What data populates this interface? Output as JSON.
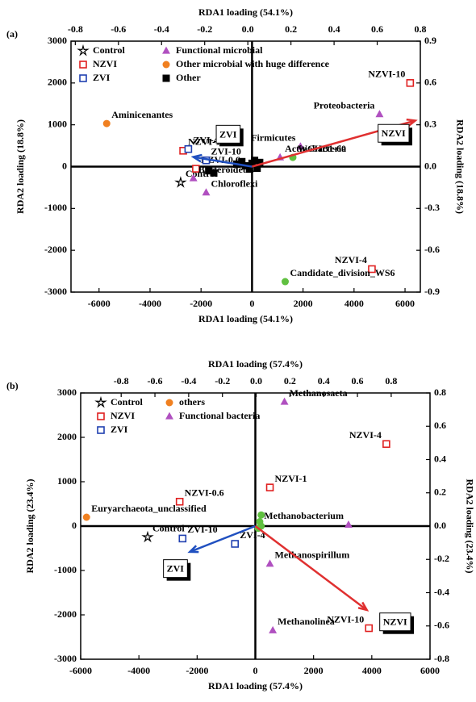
{
  "chart_data": [
    {
      "type": "scatter",
      "panel": "(a)",
      "xlabel": "RDA1 loading  (54.1%)",
      "ylabel": "RDA2 loading   (18.8%)",
      "x2label": "RDA1 loading (54.1%)",
      "y2label": "RDA2 loading   (18.8%)",
      "xlim": [
        -7100,
        6600
      ],
      "ylim": [
        -3000,
        3000
      ],
      "xticks": [
        -6000,
        -4000,
        -2000,
        0,
        2000,
        4000,
        6000
      ],
      "yticks": [
        -3000,
        -2000,
        -1000,
        0,
        1000,
        2000,
        3000
      ],
      "x2lim": [
        -0.82,
        0.8
      ],
      "x2ticks": [
        -0.8,
        -0.6,
        -0.4,
        -0.2,
        {
          "value": 0,
          "label": "0.0"
        },
        0.2,
        0.4,
        0.6,
        0.8
      ],
      "y2lim": [
        -0.9,
        0.9
      ],
      "y2ticks": [
        -0.9,
        -0.6,
        -0.3,
        {
          "value": 0,
          "label": "0.0"
        },
        0.3,
        0.6,
        0.9
      ],
      "series": [
        {
          "name": "Control",
          "color": "#000000",
          "marker": "star",
          "x": [
            -2800
          ],
          "y": [
            -380
          ],
          "labels": [
            "Control"
          ]
        },
        {
          "name": "NZVI",
          "color": "#e02020",
          "marker": "square-open",
          "x": [
            6200,
            4700,
            -2700,
            -2200
          ],
          "y": [
            2000,
            -2450,
            380,
            -50
          ],
          "labels": [
            "NZVI-10",
            "NZVI-4",
            "NZVI-1",
            "NZVI-0.6"
          ]
        },
        {
          "name": "ZVI",
          "color": "#2040b0",
          "marker": "square-open",
          "x": [
            -2500,
            -1800
          ],
          "y": [
            420,
            150
          ],
          "labels": [
            "ZVI-4",
            "ZVI-10"
          ]
        },
        {
          "name": "Functional microbial",
          "color": "#b050c0",
          "marker": "triangle",
          "x": [
            5000,
            1900,
            1100,
            -2300,
            -1800
          ],
          "y": [
            1250,
            480,
            220,
            -280,
            -620
          ],
          "labels": [
            "Proteobacteria",
            "Firmicutes",
            "Actinobacteria",
            "Bacteroidetes",
            "Chloroflexi"
          ]
        },
        {
          "name": "Other microbial with huge difference",
          "color": "#f08020",
          "marker": "circle",
          "x": [
            -5700
          ],
          "y": [
            1030
          ],
          "labels": [
            "Aminicenantes"
          ]
        },
        {
          "name": "Other",
          "color": "#000000",
          "marker": "square",
          "x": [
            -1700,
            -600,
            -400,
            -250,
            -100,
            0,
            100,
            200,
            300,
            -1500
          ],
          "y": [
            -100,
            60,
            120,
            20,
            -60,
            80,
            150,
            -40,
            100,
            -150
          ],
          "labels": [
            null,
            null,
            null,
            null,
            null,
            null,
            null,
            null,
            null,
            null
          ]
        },
        {
          "color": "#60c040",
          "marker": "circle",
          "x": [
            1600,
            1300
          ],
          "y": [
            220,
            -2750
          ],
          "labels": [
            "WCHB1-60",
            "Candidate_division_WS6"
          ]
        }
      ],
      "arrows": [
        {
          "name": "ZVI",
          "color": "#2050c0",
          "x": -2300,
          "y": 230
        },
        {
          "name": "NZVI",
          "color": "#e03030",
          "x": 6400,
          "y": 1100
        }
      ]
    },
    {
      "type": "scatter",
      "panel": "(b)",
      "xlabel": "RDA1 loading (57.4%)",
      "ylabel": "RDA2 loading (23.4%)",
      "x2label": "RDA1 loading (57.4%)",
      "y2label": "RDA2 loading (23.4%)",
      "xlim": [
        -6000,
        6000
      ],
      "ylim": [
        -3000,
        3000
      ],
      "xticks": [
        -6000,
        -4000,
        -2000,
        0,
        2000,
        4000,
        6000
      ],
      "yticks": [
        -3000,
        -2000,
        -1000,
        0,
        1000,
        2000,
        3000
      ],
      "x2lim": [
        -1.04,
        1.03
      ],
      "x2ticks": [
        -0.8,
        -0.6,
        -0.4,
        -0.2,
        {
          "value": 0,
          "label": "0.0"
        },
        0.2,
        0.4,
        0.6,
        0.8
      ],
      "y2lim": [
        -0.8,
        0.8
      ],
      "y2ticks": [
        -0.8,
        -0.6,
        -0.4,
        -0.2,
        {
          "value": 0,
          "label": "0.0"
        },
        0.2,
        0.4,
        0.6,
        0.8
      ],
      "series": [
        {
          "name": "Control",
          "color": "#000000",
          "marker": "star",
          "x": [
            -3700
          ],
          "y": [
            -250
          ],
          "labels": [
            "Control"
          ]
        },
        {
          "name": "NZVI",
          "color": "#e02020",
          "marker": "square-open",
          "x": [
            -2600,
            500,
            4500,
            3900
          ],
          "y": [
            550,
            870,
            1850,
            -2300
          ],
          "labels": [
            "NZVI-0.6",
            "NZVI-1",
            "NZVI-4",
            "NZVI-10"
          ]
        },
        {
          "name": "ZVI",
          "color": "#2040b0",
          "marker": "square-open",
          "x": [
            -2500,
            -700
          ],
          "y": [
            -280,
            -400
          ],
          "labels": [
            "ZVI-10",
            "ZVI-4"
          ]
        },
        {
          "name": "others",
          "color": "#f08020",
          "marker": "circle",
          "x": [
            -5800
          ],
          "y": [
            200
          ],
          "labels": [
            "Euryarchaeota_unclassified"
          ]
        },
        {
          "name": "Functional bacteria",
          "color": "#b050c0",
          "marker": "triangle",
          "x": [
            1000,
            3200,
            500,
            600
          ],
          "y": [
            2800,
            30,
            -850,
            -2350
          ],
          "labels": [
            "Methanosaeta",
            "Methanobacterium",
            "Methanospirillum",
            "Methanolinea"
          ]
        },
        {
          "color": "#60c040",
          "marker": "circle",
          "x": [
            200,
            150,
            100,
            200
          ],
          "y": [
            250,
            100,
            -50,
            0
          ],
          "labels": [
            null,
            null,
            null,
            null
          ]
        }
      ],
      "arrows": [
        {
          "name": "ZVI",
          "color": "#2050c0",
          "x": -2250,
          "y": -580
        },
        {
          "name": "NZVI",
          "color": "#e03030",
          "x": 3830,
          "y": -1890
        }
      ]
    }
  ]
}
